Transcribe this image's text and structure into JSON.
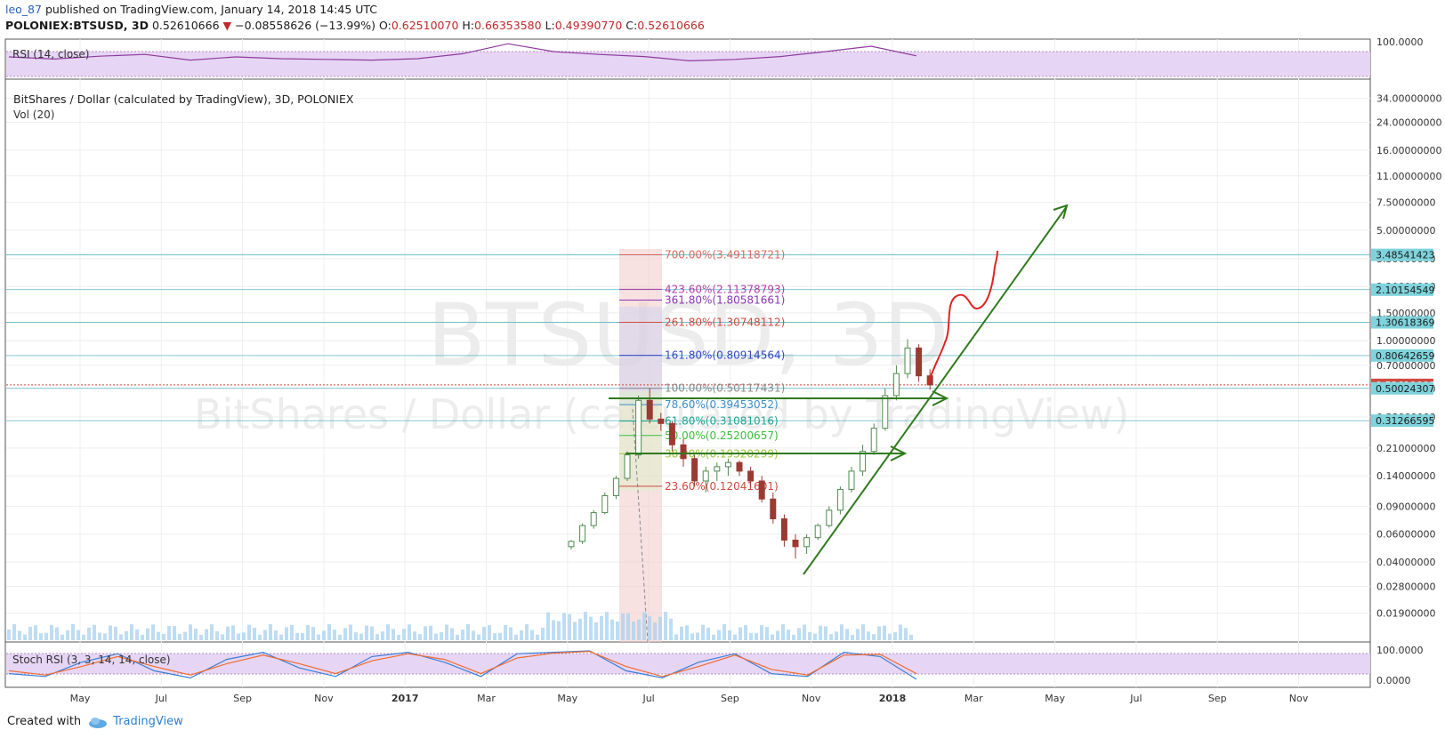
{
  "header": {
    "user": "leo_87",
    "published": "published on TradingView.com, January 14, 2018 14:45 UTC"
  },
  "ohlc": {
    "symbol": "POLONIEX:BTSUSD, 3D",
    "price": "0.52610666",
    "arrow": "▼",
    "change": "−0.08558626 (−13.99%)",
    "o_label": "O:",
    "o": "0.62510070",
    "h_label": "H:",
    "h": "0.66353580",
    "l_label": "L:",
    "l": "0.49390770",
    "c_label": "C:",
    "c": "0.52610666"
  },
  "panes": {
    "rsi_title": "RSI (14, close)",
    "main_title": "BitShares / Dollar (calculated by TradingView), 3D, POLONIEX",
    "vol_title": "Vol (20)",
    "stoch_title": "Stoch RSI (3, 3, 14, 14, close)",
    "watermark_symbol": "BTSUSD, 3D",
    "watermark_name": "BitShares / Dollar (calculated by TradingView)"
  },
  "footer": {
    "created_with": "Created with",
    "brand": "TradingView"
  },
  "colors": {
    "candle_up": "#4e8a4e",
    "candle_down": "#9b3a33",
    "rsi_line": "#8e3c9b",
    "band_fill": "#e6d5f5",
    "volume": "#a8d1ef",
    "trend_arrow": "#2f7a1c",
    "projection": "#e22222",
    "price_tag": "#cf4b3f",
    "level_tag": "#7fd3dc"
  },
  "chart_data": [
    {
      "type": "line",
      "name": "rsi",
      "title": "RSI (14, close)",
      "ylim": [
        0,
        100
      ],
      "tick_labels": [
        "100.0000"
      ],
      "x": [
        0,
        5,
        10,
        15,
        20,
        25,
        30,
        35,
        40,
        45,
        50,
        55,
        60,
        65,
        70,
        75,
        80,
        85,
        90,
        95,
        100
      ],
      "y": [
        55,
        49,
        57,
        62,
        46,
        55,
        50,
        48,
        46,
        50,
        64,
        92,
        70,
        62,
        56,
        44,
        48,
        56,
        70,
        85,
        58
      ]
    },
    {
      "type": "bar",
      "name": "price",
      "title": "BitShares / Dollar (calculated by TradingView), 3D, POLONIEX",
      "scale": "log",
      "ylim": [
        0.0125,
        40
      ],
      "y_ticks": [
        34,
        24,
        16,
        11,
        7.5,
        5,
        3.3,
        2.2,
        1.5,
        1,
        0.7,
        0.5,
        0.33,
        0.21,
        0.14,
        0.09,
        0.06,
        0.04,
        0.028,
        0.019
      ],
      "y_tick_labels": [
        "34.00000000",
        "24.00000000",
        "16.00000000",
        "11.00000000",
        "7.50000000",
        "5.00000000",
        "3.30000000",
        "2.20000000",
        "1.50000000",
        "1.00000000",
        "0.70000000",
        "0.50000000",
        "0.33000000",
        "0.21000000",
        "0.14000000",
        "0.09000000",
        "0.06000000",
        "0.04000000",
        "0.02800000",
        "0.01900000"
      ],
      "x_ticks": [
        "May",
        "Jul",
        "Sep",
        "Nov",
        "2017",
        "Mar",
        "May",
        "Jul",
        "Sep",
        "Nov",
        "2018",
        "Mar",
        "May",
        "Jul",
        "Sep",
        "Nov"
      ],
      "candles": [
        [
          0.05,
          0.055,
          0.048,
          0.054
        ],
        [
          0.054,
          0.07,
          0.052,
          0.068
        ],
        [
          0.068,
          0.085,
          0.065,
          0.082
        ],
        [
          0.082,
          0.11,
          0.08,
          0.105
        ],
        [
          0.105,
          0.14,
          0.1,
          0.135
        ],
        [
          0.135,
          0.2,
          0.13,
          0.19
        ],
        [
          0.19,
          0.45,
          0.18,
          0.42
        ],
        [
          0.42,
          0.5,
          0.3,
          0.32
        ],
        [
          0.32,
          0.35,
          0.27,
          0.3
        ],
        [
          0.3,
          0.31,
          0.2,
          0.22
        ],
        [
          0.22,
          0.24,
          0.16,
          0.18
        ],
        [
          0.18,
          0.19,
          0.12,
          0.13
        ],
        [
          0.13,
          0.16,
          0.11,
          0.15
        ],
        [
          0.15,
          0.17,
          0.13,
          0.16
        ],
        [
          0.16,
          0.18,
          0.14,
          0.17
        ],
        [
          0.17,
          0.175,
          0.14,
          0.15
        ],
        [
          0.15,
          0.16,
          0.12,
          0.13
        ],
        [
          0.13,
          0.14,
          0.095,
          0.1
        ],
        [
          0.1,
          0.11,
          0.07,
          0.075
        ],
        [
          0.075,
          0.08,
          0.05,
          0.055
        ],
        [
          0.055,
          0.06,
          0.042,
          0.05
        ],
        [
          0.05,
          0.06,
          0.045,
          0.057
        ],
        [
          0.057,
          0.07,
          0.055,
          0.068
        ],
        [
          0.068,
          0.09,
          0.066,
          0.085
        ],
        [
          0.085,
          0.12,
          0.08,
          0.115
        ],
        [
          0.115,
          0.16,
          0.11,
          0.15
        ],
        [
          0.15,
          0.22,
          0.14,
          0.2
        ],
        [
          0.2,
          0.3,
          0.19,
          0.28
        ],
        [
          0.28,
          0.5,
          0.27,
          0.45
        ],
        [
          0.45,
          0.7,
          0.42,
          0.62
        ],
        [
          0.62,
          1.02,
          0.58,
          0.9
        ],
        [
          0.9,
          0.95,
          0.55,
          0.6
        ],
        [
          0.6,
          0.66,
          0.49,
          0.526
        ]
      ],
      "fib_levels": [
        {
          "label": "700.00%(3.49118721)",
          "value": 3.49118721,
          "color": "#d96a5e"
        },
        {
          "label": "423.60%(2.11378793)",
          "value": 2.11378793,
          "color": "#b23fa8"
        },
        {
          "label": "361.80%(1.80581661)",
          "value": 1.80581661,
          "color": "#8a36b5"
        },
        {
          "label": "261.80%(1.30748112)",
          "value": 1.30748112,
          "color": "#d04a3e"
        },
        {
          "label": "161.80%(0.80914564)",
          "value": 0.80914564,
          "color": "#3446c4"
        },
        {
          "label": "100.00%(0.50117431)",
          "value": 0.50117431,
          "color": "#8a8a8a"
        },
        {
          "label": "78.60%(0.39453052)",
          "value": 0.39453052,
          "color": "#3c8fc9"
        },
        {
          "label": "61.80%(0.31081016)",
          "value": 0.31081016,
          "color": "#1ea58f"
        },
        {
          "label": "50.00%(0.25200657)",
          "value": 0.25200657,
          "color": "#3cbd3c"
        },
        {
          "label": "38.20%(0.19320299)",
          "value": 0.19320299,
          "color": "#9ec43a"
        },
        {
          "label": "23.60%(0.12041601)",
          "value": 0.12041601,
          "color": "#d04a3e"
        }
      ],
      "price_tags": [
        {
          "label": "3.48541423",
          "value": 3.48541423,
          "type": "level"
        },
        {
          "label": "2.10154549",
          "value": 2.10154549,
          "type": "level"
        },
        {
          "label": "1.30618369",
          "value": 1.30618369,
          "type": "level"
        },
        {
          "label": "0.80642659",
          "value": 0.80642659,
          "type": "level"
        },
        {
          "label": "0.52610666",
          "value": 0.52610666,
          "type": "last"
        },
        {
          "label": "0.50024307",
          "value": 0.50024307,
          "type": "level"
        },
        {
          "label": "0.31266595",
          "value": 0.31266595,
          "type": "level"
        }
      ]
    },
    {
      "type": "line",
      "name": "stoch_rsi",
      "title": "Stoch RSI (3, 3, 14, 14, close)",
      "ylim": [
        0,
        100
      ],
      "tick_labels": [
        "100.0000",
        "0.0000"
      ],
      "x": [
        0,
        4,
        8,
        12,
        16,
        20,
        24,
        28,
        32,
        36,
        40,
        44,
        48,
        52,
        56,
        60,
        64,
        68,
        72,
        76,
        80,
        84,
        88,
        92,
        96,
        100
      ],
      "series": [
        {
          "values": [
            20,
            10,
            60,
            90,
            30,
            5,
            70,
            95,
            40,
            10,
            80,
            95,
            60,
            10,
            90,
            95,
            100,
            30,
            5,
            60,
            90,
            20,
            10,
            95,
            80,
            0
          ]
        },
        {
          "values": [
            30,
            15,
            45,
            80,
            45,
            15,
            55,
            85,
            55,
            20,
            65,
            90,
            70,
            20,
            75,
            92,
            98,
            45,
            10,
            45,
            85,
            35,
            15,
            85,
            88,
            20
          ]
        }
      ]
    }
  ]
}
